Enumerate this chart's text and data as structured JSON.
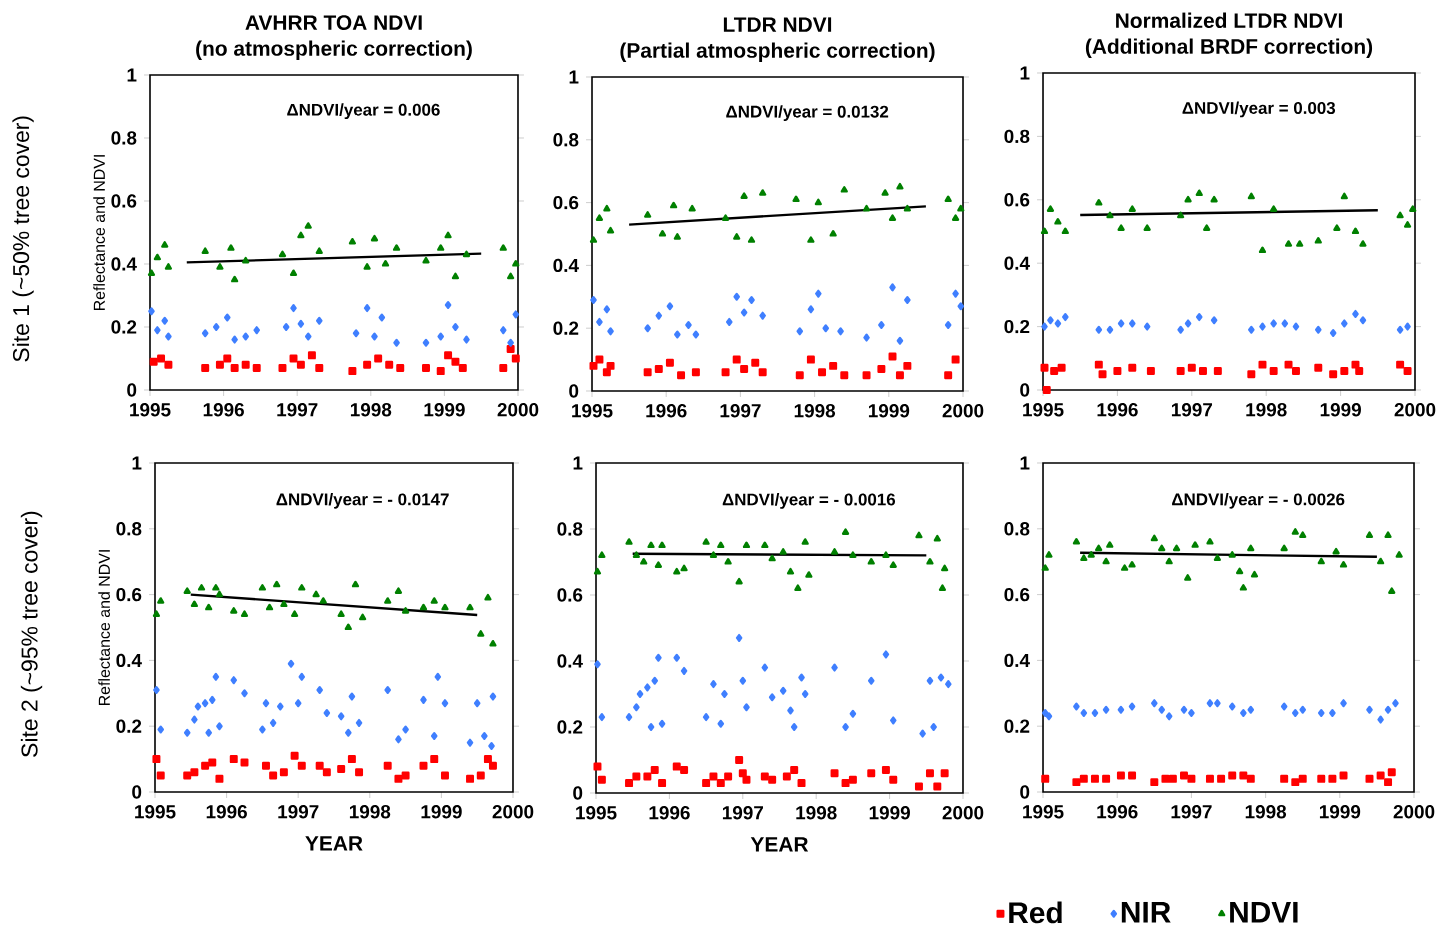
{
  "chart_data": [
    {
      "type": "scatter",
      "title": "AVHRR TOA NDVI",
      "subtitle": "(no atmospheric correction)",
      "ylabel": "Reflectance and NDVI",
      "annotations": [
        "ΔNDVI/year =  0.006",
        "Site 1 (~50% tree cover)"
      ],
      "xlim": [
        1995,
        2000
      ],
      "xticks": [
        1995,
        1996,
        1997,
        1998,
        1999,
        2000
      ],
      "ylim": [
        0,
        1
      ],
      "yticks": [
        0,
        0.2,
        0.4,
        0.6,
        0.8,
        1
      ],
      "series": [
        {
          "color": "#ff0000",
          "marker": "square",
          "x": [
            1995.05,
            1995.15,
            1995.25,
            1995.75,
            1995.95,
            1996.05,
            1996.15,
            1996.3,
            1996.45,
            1996.8,
            1996.95,
            1997.05,
            1997.2,
            1997.3,
            1997.75,
            1997.95,
            1998.1,
            1998.25,
            1998.4,
            1998.75,
            1998.95,
            1999.05,
            1999.15,
            1999.25,
            1999.8,
            1999.9,
            1999.97
          ],
          "values": [
            0.09,
            0.1,
            0.08,
            0.07,
            0.08,
            0.1,
            0.07,
            0.08,
            0.07,
            0.07,
            0.1,
            0.08,
            0.11,
            0.07,
            0.06,
            0.08,
            0.1,
            0.08,
            0.07,
            0.07,
            0.06,
            0.11,
            0.09,
            0.07,
            0.07,
            0.13,
            0.1
          ]
        },
        {
          "color": "#3f7fff",
          "marker": "diamond",
          "x": [
            1995.02,
            1995.1,
            1995.2,
            1995.25,
            1995.75,
            1995.9,
            1996.05,
            1996.15,
            1996.3,
            1996.45,
            1996.85,
            1996.95,
            1997.05,
            1997.15,
            1997.3,
            1997.8,
            1997.95,
            1998.05,
            1998.15,
            1998.35,
            1998.75,
            1998.95,
            1999.05,
            1999.15,
            1999.3,
            1999.8,
            1999.9,
            1999.97
          ],
          "values": [
            0.25,
            0.19,
            0.22,
            0.17,
            0.18,
            0.2,
            0.23,
            0.16,
            0.17,
            0.19,
            0.2,
            0.26,
            0.21,
            0.17,
            0.22,
            0.18,
            0.26,
            0.17,
            0.23,
            0.15,
            0.15,
            0.17,
            0.27,
            0.2,
            0.16,
            0.19,
            0.15,
            0.24
          ]
        },
        {
          "color": "#008000",
          "marker": "triangle",
          "x": [
            1995.02,
            1995.1,
            1995.2,
            1995.25,
            1995.75,
            1995.95,
            1996.1,
            1996.15,
            1996.3,
            1996.8,
            1996.95,
            1997.05,
            1997.15,
            1997.3,
            1997.75,
            1997.95,
            1998.05,
            1998.2,
            1998.35,
            1998.75,
            1998.95,
            1999.05,
            1999.15,
            1999.3,
            1999.8,
            1999.9,
            1999.97
          ],
          "values": [
            0.37,
            0.42,
            0.46,
            0.39,
            0.44,
            0.39,
            0.45,
            0.35,
            0.41,
            0.43,
            0.37,
            0.49,
            0.52,
            0.44,
            0.47,
            0.39,
            0.48,
            0.4,
            0.45,
            0.41,
            0.45,
            0.49,
            0.36,
            0.43,
            0.45,
            0.36,
            0.4
          ]
        },
        {
          "type": "line",
          "color": "#000000",
          "marker": "none",
          "x": [
            1995.5,
            1999.5
          ],
          "values": [
            0.405,
            0.433
          ]
        }
      ]
    },
    {
      "type": "scatter",
      "title": "LTDR NDVI",
      "subtitle": "(Partial atmospheric correction)",
      "annotations": [
        "ΔNDVI/year =  0.0132"
      ],
      "xlim": [
        1995,
        2000
      ],
      "xticks": [
        1995,
        1996,
        1997,
        1998,
        1999,
        2000
      ],
      "ylim": [
        0,
        1
      ],
      "yticks": [
        0,
        0.2,
        0.4,
        0.6,
        0.8,
        1
      ],
      "series": [
        {
          "color": "#ff0000",
          "marker": "square",
          "x": [
            1995.02,
            1995.1,
            1995.2,
            1995.25,
            1995.75,
            1995.9,
            1996.05,
            1996.2,
            1996.4,
            1996.8,
            1996.95,
            1997.05,
            1997.2,
            1997.3,
            1997.8,
            1997.95,
            1998.1,
            1998.25,
            1998.4,
            1998.7,
            1998.9,
            1999.05,
            1999.15,
            1999.25,
            1999.8,
            1999.9
          ],
          "values": [
            0.08,
            0.1,
            0.06,
            0.08,
            0.06,
            0.07,
            0.09,
            0.05,
            0.06,
            0.06,
            0.1,
            0.07,
            0.09,
            0.06,
            0.05,
            0.1,
            0.06,
            0.08,
            0.05,
            0.05,
            0.07,
            0.11,
            0.05,
            0.08,
            0.05,
            0.1
          ]
        },
        {
          "color": "#3f7fff",
          "marker": "diamond",
          "x": [
            1995.02,
            1995.1,
            1995.2,
            1995.25,
            1995.75,
            1995.9,
            1996.05,
            1996.15,
            1996.3,
            1996.4,
            1996.85,
            1996.95,
            1997.05,
            1997.15,
            1997.3,
            1997.8,
            1997.95,
            1998.05,
            1998.15,
            1998.35,
            1998.7,
            1998.9,
            1999.05,
            1999.15,
            1999.25,
            1999.8,
            1999.9,
            1999.97
          ],
          "values": [
            0.29,
            0.22,
            0.26,
            0.19,
            0.2,
            0.24,
            0.27,
            0.18,
            0.21,
            0.18,
            0.22,
            0.3,
            0.25,
            0.29,
            0.24,
            0.19,
            0.26,
            0.31,
            0.2,
            0.19,
            0.17,
            0.21,
            0.33,
            0.16,
            0.29,
            0.21,
            0.31,
            0.27
          ]
        },
        {
          "color": "#008000",
          "marker": "triangle",
          "x": [
            1995.02,
            1995.1,
            1995.2,
            1995.25,
            1995.75,
            1995.95,
            1996.1,
            1996.15,
            1996.35,
            1996.8,
            1996.95,
            1997.05,
            1997.15,
            1997.3,
            1997.75,
            1997.95,
            1998.05,
            1998.25,
            1998.4,
            1998.7,
            1998.95,
            1999.05,
            1999.15,
            1999.25,
            1999.8,
            1999.9,
            1999.97
          ],
          "values": [
            0.48,
            0.55,
            0.58,
            0.51,
            0.56,
            0.5,
            0.59,
            0.49,
            0.58,
            0.55,
            0.49,
            0.62,
            0.48,
            0.63,
            0.61,
            0.48,
            0.6,
            0.5,
            0.64,
            0.58,
            0.63,
            0.55,
            0.65,
            0.58,
            0.61,
            0.55,
            0.58
          ]
        },
        {
          "type": "line",
          "color": "#000000",
          "marker": "none",
          "x": [
            1995.5,
            1999.5
          ],
          "values": [
            0.53,
            0.588
          ]
        }
      ]
    },
    {
      "type": "scatter",
      "title": "Normalized  LTDR NDVI",
      "subtitle": "(Additional BRDF correction)",
      "annotations": [
        "ΔNDVI/year =  0.003"
      ],
      "xlim": [
        1995,
        2000
      ],
      "xticks": [
        1995,
        1996,
        1997,
        1998,
        1999,
        2000
      ],
      "ylim": [
        0,
        1
      ],
      "yticks": [
        0,
        0.2,
        0.4,
        0.6,
        0.8,
        1
      ],
      "series": [
        {
          "color": "#ff0000",
          "marker": "square",
          "x": [
            1995.02,
            1995.05,
            1995.15,
            1995.25,
            1995.75,
            1995.8,
            1996.0,
            1996.2,
            1996.45,
            1996.85,
            1997.0,
            1997.15,
            1997.35,
            1997.8,
            1997.95,
            1998.1,
            1998.3,
            1998.4,
            1998.7,
            1998.9,
            1999.05,
            1999.2,
            1999.25,
            1999.8,
            1999.9
          ],
          "values": [
            0.07,
            0.0,
            0.06,
            0.07,
            0.08,
            0.05,
            0.06,
            0.07,
            0.06,
            0.06,
            0.07,
            0.06,
            0.06,
            0.05,
            0.08,
            0.06,
            0.08,
            0.06,
            0.07,
            0.05,
            0.06,
            0.08,
            0.06,
            0.08,
            0.06
          ]
        },
        {
          "color": "#3f7fff",
          "marker": "diamond",
          "x": [
            1995.02,
            1995.1,
            1995.2,
            1995.3,
            1995.75,
            1995.9,
            1996.05,
            1996.2,
            1996.4,
            1996.85,
            1996.95,
            1997.1,
            1997.3,
            1997.8,
            1997.95,
            1998.1,
            1998.25,
            1998.4,
            1998.7,
            1998.9,
            1999.05,
            1999.2,
            1999.3,
            1999.8,
            1999.9
          ],
          "values": [
            0.2,
            0.22,
            0.21,
            0.23,
            0.19,
            0.19,
            0.21,
            0.21,
            0.2,
            0.19,
            0.21,
            0.23,
            0.22,
            0.19,
            0.2,
            0.21,
            0.21,
            0.2,
            0.19,
            0.18,
            0.21,
            0.24,
            0.22,
            0.19,
            0.2
          ]
        },
        {
          "color": "#008000",
          "marker": "triangle",
          "x": [
            1995.02,
            1995.1,
            1995.2,
            1995.3,
            1995.75,
            1995.9,
            1996.05,
            1996.2,
            1996.4,
            1996.85,
            1996.95,
            1997.1,
            1997.2,
            1997.3,
            1997.8,
            1997.95,
            1998.1,
            1998.3,
            1998.45,
            1998.7,
            1998.95,
            1999.05,
            1999.2,
            1999.3,
            1999.8,
            1999.9,
            1999.97
          ],
          "values": [
            0.5,
            0.57,
            0.53,
            0.5,
            0.59,
            0.55,
            0.51,
            0.57,
            0.51,
            0.55,
            0.6,
            0.62,
            0.51,
            0.6,
            0.61,
            0.44,
            0.57,
            0.46,
            0.46,
            0.47,
            0.51,
            0.61,
            0.5,
            0.46,
            0.55,
            0.52,
            0.57
          ]
        },
        {
          "type": "line",
          "color": "#000000",
          "marker": "none",
          "x": [
            1995.5,
            1999.5
          ],
          "values": [
            0.552,
            0.567
          ]
        }
      ]
    },
    {
      "type": "scatter",
      "xlabel": "YEAR",
      "ylabel": "Reflectance and NDVI",
      "annotations": [
        "ΔNDVI/year = - 0.0147",
        "Site 2 (~95% tree cover)"
      ],
      "xlim": [
        1995,
        2000
      ],
      "xticks": [
        1995,
        1996,
        1997,
        1998,
        1999,
        2000
      ],
      "ylim": [
        0,
        1
      ],
      "yticks": [
        0,
        0.2,
        0.4,
        0.6,
        0.8,
        1
      ],
      "series": [
        {
          "color": "#ff0000",
          "marker": "square",
          "x": [
            1995.02,
            1995.08,
            1995.45,
            1995.55,
            1995.7,
            1995.8,
            1995.9,
            1996.1,
            1996.25,
            1996.55,
            1996.65,
            1996.8,
            1996.95,
            1997.05,
            1997.3,
            1997.4,
            1997.6,
            1997.75,
            1997.85,
            1998.25,
            1998.4,
            1998.5,
            1998.75,
            1998.9,
            1999.05,
            1999.4,
            1999.55,
            1999.65,
            1999.72
          ],
          "values": [
            0.1,
            0.05,
            0.05,
            0.06,
            0.08,
            0.09,
            0.04,
            0.1,
            0.09,
            0.08,
            0.05,
            0.06,
            0.11,
            0.08,
            0.08,
            0.06,
            0.07,
            0.1,
            0.06,
            0.08,
            0.04,
            0.05,
            0.08,
            0.1,
            0.05,
            0.04,
            0.05,
            0.1,
            0.08
          ]
        },
        {
          "color": "#3f7fff",
          "marker": "diamond",
          "x": [
            1995.02,
            1995.08,
            1995.45,
            1995.55,
            1995.6,
            1995.7,
            1995.75,
            1995.8,
            1995.85,
            1995.9,
            1996.1,
            1996.25,
            1996.5,
            1996.55,
            1996.65,
            1996.75,
            1996.9,
            1997.0,
            1997.05,
            1997.3,
            1997.4,
            1997.6,
            1997.7,
            1997.75,
            1997.85,
            1998.25,
            1998.4,
            1998.5,
            1998.75,
            1998.9,
            1998.95,
            1999.05,
            1999.4,
            1999.5,
            1999.6,
            1999.7,
            1999.72
          ],
          "values": [
            0.31,
            0.19,
            0.18,
            0.22,
            0.26,
            0.27,
            0.18,
            0.28,
            0.35,
            0.2,
            0.34,
            0.3,
            0.19,
            0.27,
            0.21,
            0.26,
            0.39,
            0.27,
            0.35,
            0.31,
            0.24,
            0.23,
            0.18,
            0.29,
            0.21,
            0.31,
            0.16,
            0.19,
            0.28,
            0.17,
            0.35,
            0.27,
            0.15,
            0.27,
            0.17,
            0.14,
            0.29
          ]
        },
        {
          "color": "#008000",
          "marker": "triangle",
          "x": [
            1995.02,
            1995.08,
            1995.45,
            1995.55,
            1995.65,
            1995.75,
            1995.85,
            1995.9,
            1996.1,
            1996.25,
            1996.5,
            1996.6,
            1996.7,
            1996.8,
            1996.95,
            1997.05,
            1997.25,
            1997.35,
            1997.6,
            1997.7,
            1997.8,
            1997.9,
            1998.25,
            1998.4,
            1998.5,
            1998.75,
            1998.9,
            1999.05,
            1999.4,
            1999.55,
            1999.65,
            1999.72
          ],
          "values": [
            0.54,
            0.58,
            0.61,
            0.57,
            0.62,
            0.56,
            0.62,
            0.6,
            0.55,
            0.54,
            0.62,
            0.56,
            0.63,
            0.57,
            0.54,
            0.62,
            0.6,
            0.58,
            0.54,
            0.5,
            0.63,
            0.53,
            0.58,
            0.61,
            0.55,
            0.56,
            0.58,
            0.56,
            0.56,
            0.48,
            0.59,
            0.45
          ]
        },
        {
          "type": "line",
          "color": "#000000",
          "marker": "none",
          "x": [
            1995.5,
            1999.5
          ],
          "values": [
            0.6,
            0.538
          ]
        }
      ]
    },
    {
      "type": "scatter",
      "xlabel": "YEAR",
      "annotations": [
        "ΔNDVI/year = - 0.0016"
      ],
      "xlim": [
        1995,
        2000
      ],
      "xticks": [
        1995,
        1996,
        1997,
        1998,
        1999,
        2000
      ],
      "ylim": [
        0,
        1
      ],
      "yticks": [
        0,
        0.2,
        0.4,
        0.6,
        0.8,
        1
      ],
      "series": [
        {
          "color": "#ff0000",
          "marker": "square",
          "x": [
            1995.02,
            1995.08,
            1995.45,
            1995.55,
            1995.7,
            1995.8,
            1995.9,
            1996.1,
            1996.2,
            1996.5,
            1996.6,
            1996.7,
            1996.8,
            1996.95,
            1997.0,
            1997.05,
            1997.3,
            1997.4,
            1997.6,
            1997.7,
            1997.8,
            1998.25,
            1998.4,
            1998.5,
            1998.75,
            1998.95,
            1999.05,
            1999.4,
            1999.55,
            1999.65,
            1999.75
          ],
          "values": [
            0.08,
            0.04,
            0.03,
            0.05,
            0.05,
            0.07,
            0.03,
            0.08,
            0.07,
            0.03,
            0.05,
            0.03,
            0.05,
            0.1,
            0.06,
            0.04,
            0.05,
            0.04,
            0.05,
            0.07,
            0.03,
            0.06,
            0.03,
            0.04,
            0.06,
            0.07,
            0.04,
            0.02,
            0.06,
            0.02,
            0.06
          ]
        },
        {
          "color": "#3f7fff",
          "marker": "diamond",
          "x": [
            1995.02,
            1995.08,
            1995.45,
            1995.55,
            1995.6,
            1995.7,
            1995.75,
            1995.8,
            1995.85,
            1995.9,
            1996.1,
            1996.2,
            1996.5,
            1996.6,
            1996.7,
            1996.75,
            1996.95,
            1997.05,
            1997.0,
            1997.3,
            1997.4,
            1997.55,
            1997.65,
            1997.7,
            1997.8,
            1997.85,
            1998.25,
            1998.4,
            1998.5,
            1998.75,
            1998.95,
            1999.05,
            1999.45,
            1999.55,
            1999.6,
            1999.7,
            1999.8
          ],
          "values": [
            0.39,
            0.23,
            0.23,
            0.26,
            0.3,
            0.32,
            0.2,
            0.34,
            0.41,
            0.21,
            0.41,
            0.37,
            0.23,
            0.33,
            0.21,
            0.3,
            0.47,
            0.26,
            0.34,
            0.38,
            0.29,
            0.31,
            0.25,
            0.2,
            0.35,
            0.3,
            0.38,
            0.2,
            0.24,
            0.34,
            0.42,
            0.22,
            0.18,
            0.34,
            0.2,
            0.35,
            0.33
          ]
        },
        {
          "color": "#008000",
          "marker": "triangle",
          "x": [
            1995.02,
            1995.08,
            1995.45,
            1995.55,
            1995.65,
            1995.75,
            1995.85,
            1995.9,
            1996.1,
            1996.2,
            1996.5,
            1996.6,
            1996.7,
            1996.8,
            1996.95,
            1997.05,
            1997.3,
            1997.4,
            1997.55,
            1997.65,
            1997.75,
            1997.85,
            1997.9,
            1998.25,
            1998.4,
            1998.5,
            1998.75,
            1998.95,
            1999.05,
            1999.4,
            1999.55,
            1999.65,
            1999.72,
            1999.75
          ],
          "values": [
            0.67,
            0.72,
            0.76,
            0.72,
            0.7,
            0.75,
            0.69,
            0.75,
            0.67,
            0.68,
            0.76,
            0.72,
            0.75,
            0.7,
            0.64,
            0.75,
            0.75,
            0.71,
            0.73,
            0.67,
            0.62,
            0.76,
            0.66,
            0.73,
            0.79,
            0.72,
            0.7,
            0.72,
            0.69,
            0.78,
            0.7,
            0.77,
            0.62,
            0.68
          ]
        },
        {
          "type": "line",
          "color": "#000000",
          "marker": "none",
          "x": [
            1995.5,
            1999.5
          ],
          "values": [
            0.725,
            0.72
          ]
        }
      ]
    },
    {
      "type": "scatter",
      "annotations": [
        "ΔNDVI/year = - 0.0026"
      ],
      "legend": "bottom",
      "xlim": [
        1995,
        2000
      ],
      "xticks": [
        1995,
        1996,
        1997,
        1998,
        1999,
        2000
      ],
      "ylim": [
        0,
        1
      ],
      "yticks": [
        0,
        0.2,
        0.4,
        0.6,
        0.8,
        1
      ],
      "series": [
        {
          "name": "Red",
          "color": "#ff0000",
          "marker": "square",
          "x": [
            1995.03,
            1995.45,
            1995.55,
            1995.7,
            1995.85,
            1996.05,
            1996.2,
            1996.5,
            1996.65,
            1996.75,
            1996.9,
            1997.0,
            1997.25,
            1997.4,
            1997.55,
            1997.7,
            1997.8,
            1998.25,
            1998.4,
            1998.5,
            1998.75,
            1998.9,
            1999.05,
            1999.4,
            1999.55,
            1999.65,
            1999.7
          ],
          "values": [
            0.04,
            0.03,
            0.04,
            0.04,
            0.04,
            0.05,
            0.05,
            0.03,
            0.04,
            0.04,
            0.05,
            0.04,
            0.04,
            0.04,
            0.05,
            0.05,
            0.04,
            0.04,
            0.03,
            0.04,
            0.04,
            0.04,
            0.05,
            0.04,
            0.05,
            0.03,
            0.06
          ]
        },
        {
          "name": "NIR",
          "color": "#3f7fff",
          "marker": "diamond",
          "x": [
            1995.03,
            1995.08,
            1995.45,
            1995.55,
            1995.7,
            1995.85,
            1996.05,
            1996.2,
            1996.5,
            1996.6,
            1996.7,
            1996.9,
            1997.0,
            1997.25,
            1997.35,
            1997.55,
            1997.7,
            1997.8,
            1998.25,
            1998.4,
            1998.5,
            1998.75,
            1998.9,
            1999.05,
            1999.4,
            1999.55,
            1999.65,
            1999.75
          ],
          "values": [
            0.24,
            0.23,
            0.26,
            0.24,
            0.24,
            0.25,
            0.25,
            0.26,
            0.27,
            0.25,
            0.23,
            0.25,
            0.24,
            0.27,
            0.27,
            0.26,
            0.24,
            0.25,
            0.26,
            0.24,
            0.25,
            0.24,
            0.24,
            0.27,
            0.25,
            0.22,
            0.25,
            0.27
          ]
        },
        {
          "name": "NDVI",
          "color": "#008000",
          "marker": "triangle",
          "x": [
            1995.03,
            1995.08,
            1995.45,
            1995.55,
            1995.65,
            1995.75,
            1995.85,
            1995.9,
            1996.1,
            1996.2,
            1996.5,
            1996.6,
            1996.7,
            1996.8,
            1996.95,
            1997.05,
            1997.25,
            1997.35,
            1997.55,
            1997.65,
            1997.7,
            1997.8,
            1997.85,
            1998.25,
            1998.4,
            1998.5,
            1998.75,
            1998.95,
            1999.05,
            1999.4,
            1999.55,
            1999.65,
            1999.7,
            1999.8
          ],
          "values": [
            0.68,
            0.72,
            0.76,
            0.71,
            0.72,
            0.74,
            0.7,
            0.75,
            0.68,
            0.69,
            0.77,
            0.74,
            0.7,
            0.74,
            0.65,
            0.75,
            0.76,
            0.71,
            0.72,
            0.67,
            0.62,
            0.74,
            0.66,
            0.74,
            0.79,
            0.78,
            0.7,
            0.73,
            0.69,
            0.78,
            0.7,
            0.78,
            0.61,
            0.72
          ]
        },
        {
          "type": "line",
          "color": "#000000",
          "marker": "none",
          "x": [
            1995.5,
            1999.5
          ],
          "values": [
            0.727,
            0.715
          ]
        }
      ]
    }
  ]
}
